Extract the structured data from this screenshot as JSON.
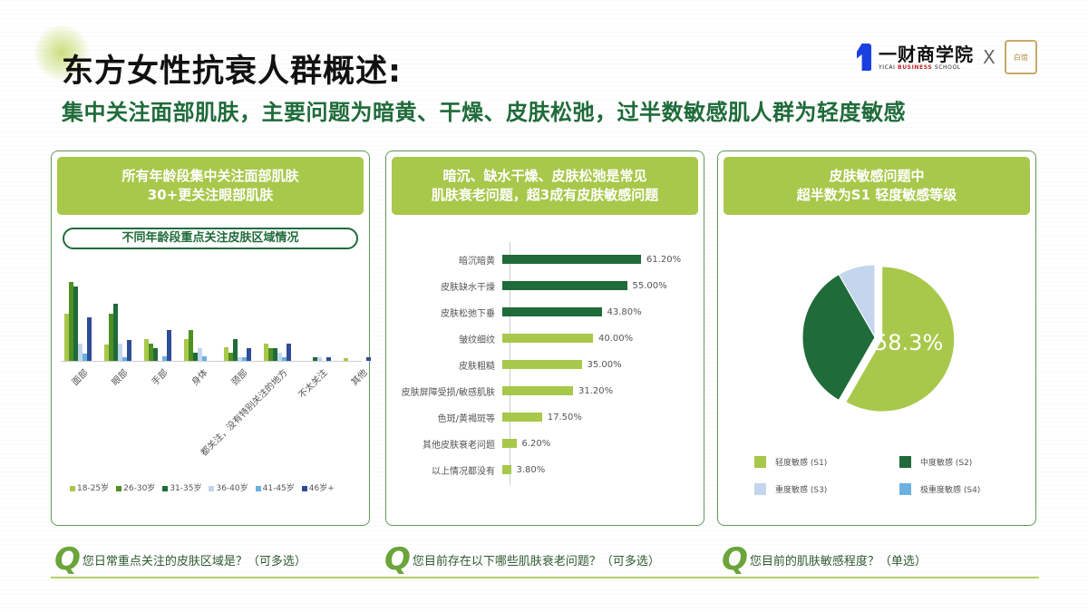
{
  "header": {
    "title": "东方女性抗衰人群概述:",
    "subtitle": "集中关注面部肌肤，主要问题为暗黄、干燥、皮肤松弛，过半数敏感肌人群为轻度敏感",
    "logo_cn": "一财商学院",
    "logo_en_a": "YICAI ",
    "logo_en_b": "BUSINESS",
    "logo_en_c": " SCHOOL",
    "logo_x": "X",
    "logo2_text": "白馆"
  },
  "panels": [
    {
      "head_line1": "所有年龄段集中关注面部肌肤",
      "head_line2": "30+更关注眼部肌肤",
      "pill": "不同年龄段重点关注皮肤区域情况",
      "question": "您日常重点关注的皮肤区域是？（可多选）"
    },
    {
      "head_line1": "暗沉、缺水干燥、皮肤松弛是常见",
      "head_line2": "肌肤衰老问题，超3成有皮肤敏感问题",
      "question": "您目前存在以下哪些肌肤衰老问题？（可多选）"
    },
    {
      "head_line1": "皮肤敏感问题中",
      "head_line2": "超半数为S1 轻度敏感等级",
      "question": "您目前的肌肤敏感程度？（单选）"
    }
  ],
  "q_mark": "Q",
  "colors": {
    "lime": "#a8c84b",
    "green_dark": "#1f6b3a",
    "green_mid": "#4f8f24",
    "light_blue": "#c3d6ee",
    "sky_blue": "#6ab0e0",
    "navy": "#2f4d96"
  },
  "chart_data": [
    {
      "type": "bar",
      "title": "不同年龄段重点关注皮肤区域情况",
      "categories": [
        "面部",
        "眼部",
        "手部",
        "身体",
        "颈部",
        "都关注，没有特别关注的地方",
        "不太关注",
        "其他"
      ],
      "series": [
        {
          "name": "18-25岁",
          "color": "#a8c84b",
          "values": [
            52,
            18,
            24,
            24,
            15,
            19,
            0,
            3
          ]
        },
        {
          "name": "26-30岁",
          "color": "#4f8f24",
          "values": [
            87,
            52,
            19,
            34,
            9,
            14,
            0,
            0
          ]
        },
        {
          "name": "31-35岁",
          "color": "#1f6b3a",
          "values": [
            82,
            63,
            14,
            9,
            24,
            14,
            4,
            0
          ]
        },
        {
          "name": "36-40岁",
          "color": "#c3d6ee",
          "values": [
            19,
            19,
            0,
            14,
            4,
            9,
            4,
            0
          ]
        },
        {
          "name": "41-45岁",
          "color": "#6ab0e0",
          "values": [
            8,
            4,
            5,
            5,
            4,
            4,
            0,
            0
          ]
        },
        {
          "name": "46岁+",
          "color": "#2f4d96",
          "values": [
            48,
            23,
            34,
            0,
            14,
            19,
            4,
            4
          ]
        }
      ],
      "xlabel": "",
      "ylabel": "",
      "grid": false,
      "legend_position": "bottom",
      "note": "values are relative pixel heights (no axis shown)"
    },
    {
      "type": "bar",
      "orientation": "horizontal",
      "title": "您目前存在以下哪些肌肤衰老问题？",
      "categories": [
        "暗沉暗黄",
        "皮肤缺水干燥",
        "皮肤松弛下垂",
        "皱纹细纹",
        "皮肤粗糙",
        "皮肤屏障受损/敏感肌肤",
        "色斑/黄褐斑等",
        "其他皮肤衰老问题",
        "以上情况都没有"
      ],
      "values": [
        61.2,
        55.0,
        43.8,
        40.0,
        35.0,
        31.2,
        17.5,
        6.2,
        3.8
      ],
      "labels": [
        "61.20%",
        "55.00%",
        "43.80%",
        "40.00%",
        "35.00%",
        "31.20%",
        "17.50%",
        "6.20%",
        "3.80%"
      ],
      "highlight_count": 3,
      "xlim": [
        0,
        70
      ]
    },
    {
      "type": "pie",
      "title": "您目前的肌肤敏感程度？",
      "categories": [
        "轻度敏感 (S1)",
        "中度敏感 (S2)",
        "重度敏感 (S3)",
        "极重度敏感 (S4)"
      ],
      "values": [
        58.3,
        33.4,
        8.3,
        0
      ],
      "colors": [
        "#a8c84b",
        "#1f6b3a",
        "#c3d6ee",
        "#6ab0e0"
      ],
      "data_label": "58.3%",
      "legend_position": "bottom"
    }
  ]
}
